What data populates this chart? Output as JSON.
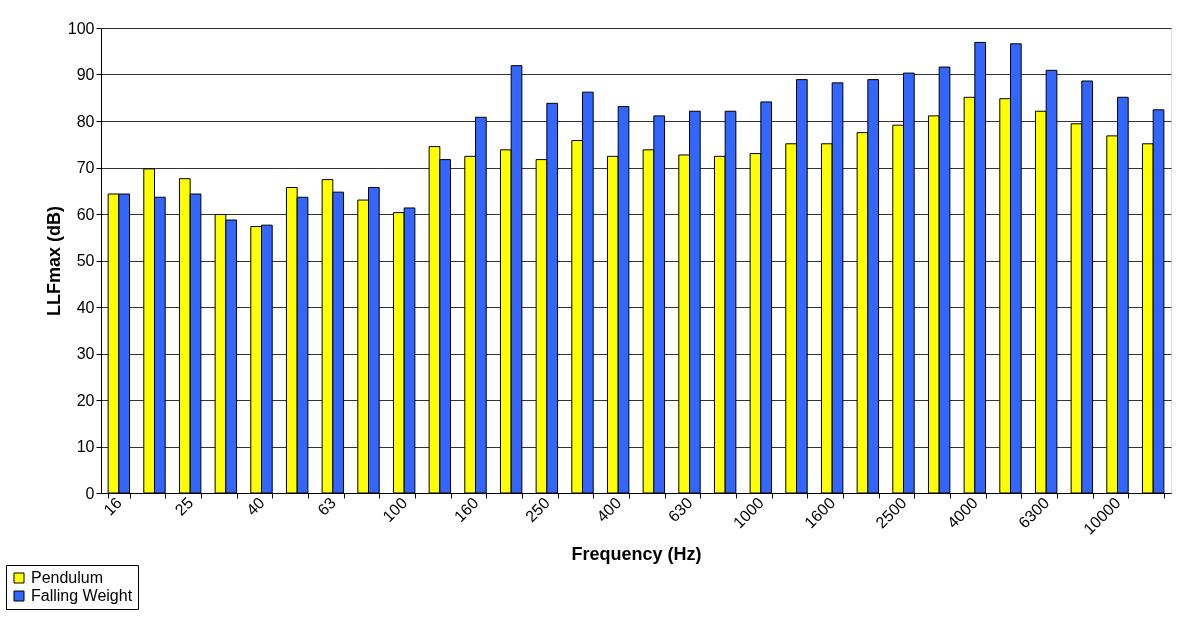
{
  "chart_data": {
    "type": "bar",
    "xlabel": "Frequency (Hz)",
    "ylabel": "LLFmax (dB)",
    "categories": [
      "16",
      null,
      "25",
      null,
      "40",
      null,
      "63",
      null,
      "100",
      null,
      "160",
      null,
      "250",
      null,
      "400",
      null,
      "630",
      null,
      "1000",
      null,
      "1600",
      null,
      "2500",
      null,
      "4000",
      null,
      "6300",
      null,
      "10000",
      null
    ],
    "series": [
      {
        "name": "Pendulum",
        "color": "#ffff00",
        "values": [
          64.3,
          69.7,
          67.6,
          59.9,
          57.3,
          65.7,
          67.4,
          63.0,
          60.3,
          74.5,
          72.4,
          73.8,
          71.7,
          75.8,
          72.4,
          73.8,
          72.7,
          72.4,
          73.0,
          75.1,
          75.1,
          77.5,
          79.1,
          81.1,
          85.1,
          84.8,
          82.1,
          79.4,
          76.8,
          75.1
        ]
      },
      {
        "name": "Falling Weight",
        "color": "#3366ff",
        "values": [
          64.3,
          63.6,
          64.3,
          58.7,
          57.6,
          63.6,
          64.7,
          65.7,
          61.3,
          71.7,
          80.8,
          91.9,
          83.8,
          86.2,
          83.1,
          81.1,
          82.1,
          82.1,
          84.1,
          88.9,
          88.2,
          88.9,
          90.3,
          91.6,
          96.9,
          96.6,
          90.9,
          88.6,
          85.1,
          82.4
        ]
      }
    ],
    "ylim": [
      0,
      100
    ],
    "yticks": [
      0,
      10,
      20,
      30,
      40,
      50,
      60,
      70,
      80,
      90,
      100
    ],
    "grid": "y",
    "legend": "bottom left"
  }
}
